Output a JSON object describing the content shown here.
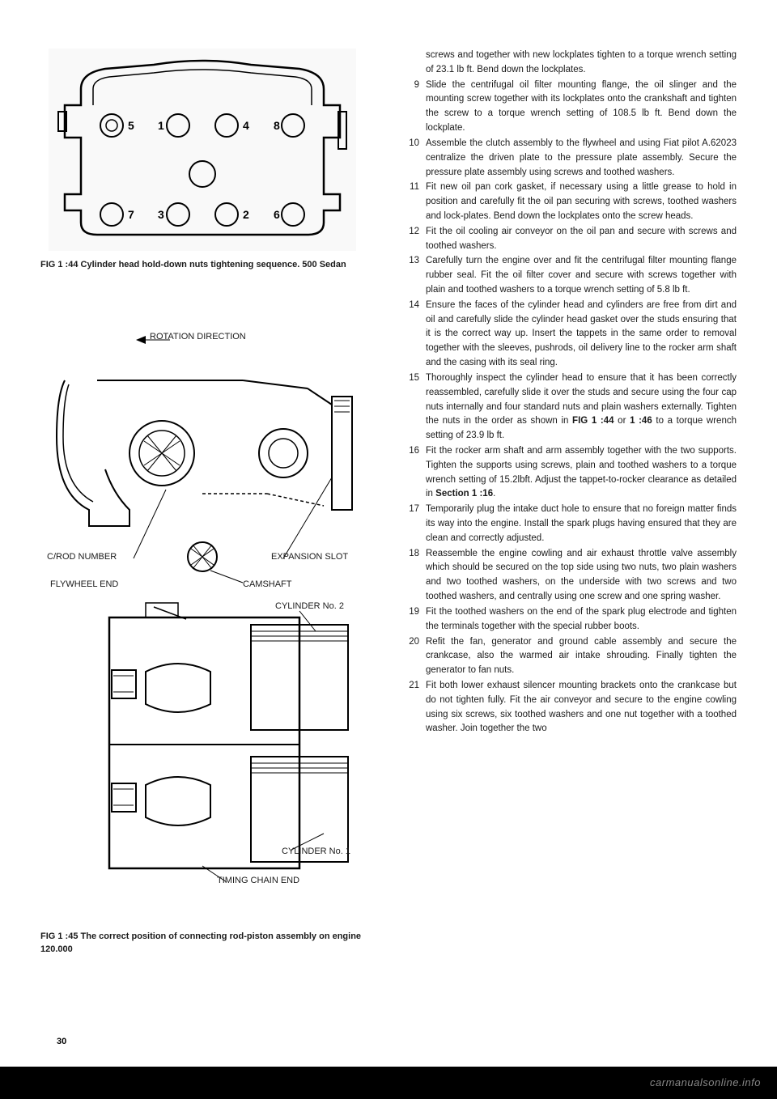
{
  "page_number": "30",
  "footer_watermark": "carmanualsonline.info",
  "fig44": {
    "caption": "FIG 1 :44  Cylinder head hold-down nuts tightening sequence. 500 Sedan",
    "bolt_numbers": [
      "5",
      "1",
      "4",
      "8",
      "7",
      "3",
      "2",
      "6"
    ]
  },
  "fig45": {
    "caption": "FIG 1 :45  The correct position of connecting rod-piston assembly on engine 120.000",
    "labels": {
      "rotation": "ROTATION DIRECTION",
      "crod": "C/ROD NUMBER",
      "expansion": "EXPANSION SLOT",
      "flywheel": "FLYWHEEL END",
      "camshaft": "CAMSHAFT",
      "cyl2": "CYLINDER No. 2",
      "cyl1": "CYLINDER No. 1",
      "timing": "TIMING CHAIN END"
    }
  },
  "instructions": {
    "intro": "screws and together with new lockplates tighten to a torque wrench setting of 23.1 lb ft. Bend down the lockplates.",
    "items": [
      {
        "n": "9",
        "t": "Slide the centrifugal oil filter mounting flange, the oil slinger and the mounting screw together with its lockplates onto the crankshaft and tighten the screw to a torque wrench setting of 108.5 lb ft. Bend down the lockplate."
      },
      {
        "n": "10",
        "t": "Assemble the clutch assembly to the flywheel and using Fiat pilot A.62023 centralize the driven plate to the pressure plate assembly. Secure the pressure plate assembly using screws and toothed washers."
      },
      {
        "n": "11",
        "t": "Fit new oil pan cork gasket, if necessary using a little grease to hold in position and carefully fit the oil pan securing with screws, toothed washers and lock-plates. Bend down the lockplates onto the screw heads."
      },
      {
        "n": "12",
        "t": "Fit the oil cooling air conveyor on the oil pan and secure with screws and toothed washers."
      },
      {
        "n": "13",
        "t": "Carefully turn the engine over and fit the centrifugal filter mounting flange rubber seal. Fit the oil filter cover and secure with screws together with plain and toothed washers to a torque wrench setting of 5.8 lb ft."
      },
      {
        "n": "14",
        "t": "Ensure the faces of the cylinder head and cylinders are free from dirt and oil and carefully slide the cylinder head gasket over the studs ensuring that it is the correct way up. Insert the tappets in the same order to removal together with the sleeves, pushrods, oil delivery line to the rocker arm shaft and the casing with its seal ring."
      },
      {
        "n": "15",
        "t": "Thoroughly inspect the cylinder head to ensure that it has been correctly reassembled, carefully slide it over the studs and secure using the four cap nuts internally and four standard nuts and plain washers externally. Tighten the nuts in the order as shown in <b>FIG 1 :44</b> or <b>1 :46</b> to a torque wrench setting of 23.9 lb ft."
      },
      {
        "n": "16",
        "t": "Fit the rocker arm shaft and arm assembly together with the two supports. Tighten the supports using screws, plain and toothed washers to a torque wrench setting of 15.2lbft. Adjust the tappet-to-rocker clearance as detailed in <b>Section 1 :16</b>."
      },
      {
        "n": "17",
        "t": "Temporarily plug the intake duct hole to ensure that no foreign matter finds its way into the engine. Install the spark plugs having ensured that they are clean and correctly adjusted."
      },
      {
        "n": "18",
        "t": "Reassemble the engine cowling and air exhaust throttle valve assembly which should be secured on the top side using two nuts, two plain washers and two toothed washers, on the underside with two screws and two toothed washers, and centrally using one screw and one spring washer."
      },
      {
        "n": "19",
        "t": "Fit the toothed washers on the end of the spark plug electrode and tighten the terminals together with the special rubber boots."
      },
      {
        "n": "20",
        "t": "Refit the fan, generator and ground cable assembly and secure the crankcase, also the warmed air intake shrouding. Finally tighten the generator to fan nuts."
      },
      {
        "n": "21",
        "t": "Fit both lower exhaust silencer mounting brackets onto the crankcase but do not tighten fully. Fit the air conveyor and secure to the engine cowling using six screws, six toothed washers and one nut together with a toothed washer. Join together the two"
      }
    ]
  }
}
